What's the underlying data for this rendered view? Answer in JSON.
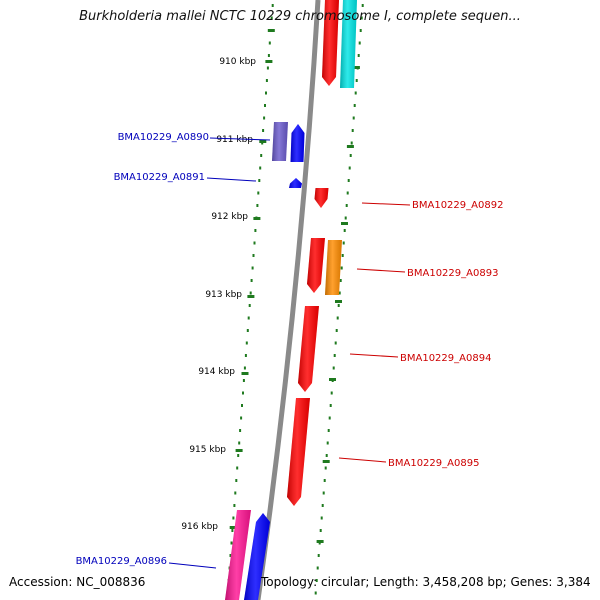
{
  "title": "Burkholderia mallei NCTC 10229 chromosome I, complete sequen...",
  "footer": {
    "accession": "Accession: NC_008836",
    "summary": "Topology: circular; Length: 3,458,208 bp; Genes: 3,384"
  },
  "colors": {
    "backbone": "#8a8a8a",
    "tick": "#1f7a1f",
    "label_forward": "#cc0000",
    "label_reverse": "#0000bb"
  },
  "ruler": [
    {
      "label": "910 kbp"
    },
    {
      "label": "911 kbp"
    },
    {
      "label": "912 kbp"
    },
    {
      "label": "913 kbp"
    },
    {
      "label": "914 kbp"
    },
    {
      "label": "915 kbp"
    },
    {
      "label": "916 kbp"
    }
  ],
  "gene_labels": [
    {
      "label": "BMA10229_A0890",
      "strand": "reverse"
    },
    {
      "label": "BMA10229_A0891",
      "strand": "reverse"
    },
    {
      "label": "BMA10229_A0892",
      "strand": "forward"
    },
    {
      "label": "BMA10229_A0893",
      "strand": "forward"
    },
    {
      "label": "BMA10229_A0894",
      "strand": "forward"
    },
    {
      "label": "BMA10229_A0895",
      "strand": "forward"
    },
    {
      "label": "BMA10229_A0896",
      "strand": "reverse"
    }
  ],
  "features": [
    {
      "color": "#ff0000"
    },
    {
      "color": "#00e5e5"
    },
    {
      "color": "#6a5acd"
    },
    {
      "color": "#0000ff"
    },
    {
      "color": "#0000ff"
    },
    {
      "color": "#ff0000"
    },
    {
      "color": "#ff0000"
    },
    {
      "color": "#ff8c00"
    },
    {
      "color": "#ff0000"
    },
    {
      "color": "#ff0000"
    },
    {
      "color": "#ff1493"
    },
    {
      "color": "#0000ff"
    }
  ]
}
